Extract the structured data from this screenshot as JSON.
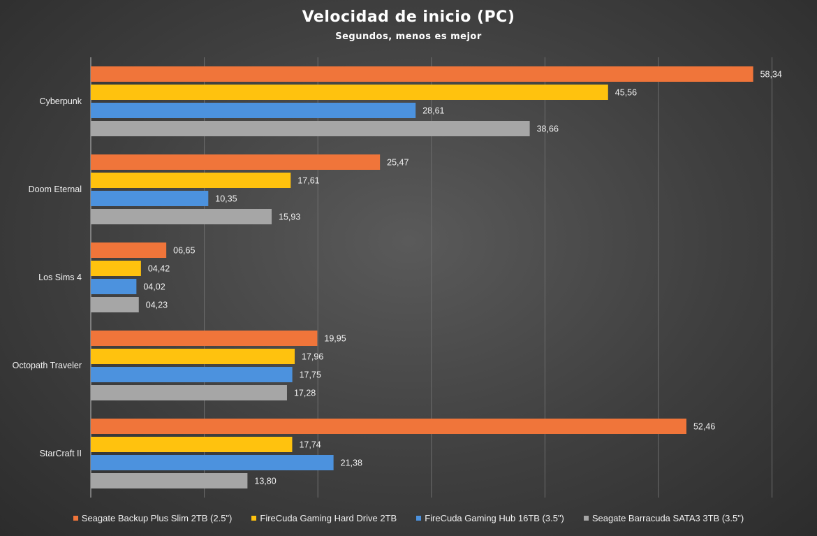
{
  "chart_data": {
    "type": "bar",
    "orientation": "horizontal",
    "title": "Velocidad de inicio (PC)",
    "subtitle": "Segundos, menos es mejor",
    "xlabel": "",
    "ylabel": "",
    "xlim": [
      0,
      70
    ],
    "grid": true,
    "legend_position": "bottom",
    "categories": [
      "Cyberpunk",
      "Doom Eternal",
      "Los Sims 4",
      "Octopath Traveler",
      "StarCraft II"
    ],
    "series": [
      {
        "name": "Seagate Backup Plus Slim 2TB (2.5\")",
        "color": "#f0753a",
        "values": [
          58.34,
          25.47,
          6.65,
          19.95,
          52.46
        ],
        "labels": [
          "58,34",
          "25,47",
          "06,65",
          "19,95",
          "52,46"
        ]
      },
      {
        "name": "FireCuda Gaming Hard Drive 2TB",
        "color": "#ffc20e",
        "values": [
          45.56,
          17.61,
          4.42,
          17.96,
          17.74
        ],
        "labels": [
          "45,56",
          "17,61",
          "04,42",
          "17,96",
          "17,74"
        ]
      },
      {
        "name": "FireCuda Gaming Hub 16TB (3.5\")",
        "color": "#4c92de",
        "values": [
          28.61,
          10.35,
          4.02,
          17.75,
          21.38
        ],
        "labels": [
          "28,61",
          "10,35",
          "04,02",
          "17,75",
          "21,38"
        ]
      },
      {
        "name": "Seagate Barracuda SATA3 3TB (3.5\")",
        "color": "#a6a6a6",
        "values": [
          38.66,
          15.93,
          4.23,
          17.28,
          13.8
        ],
        "labels": [
          "38,66",
          "15,93",
          "04,23",
          "17,28",
          "13,80"
        ]
      }
    ]
  }
}
